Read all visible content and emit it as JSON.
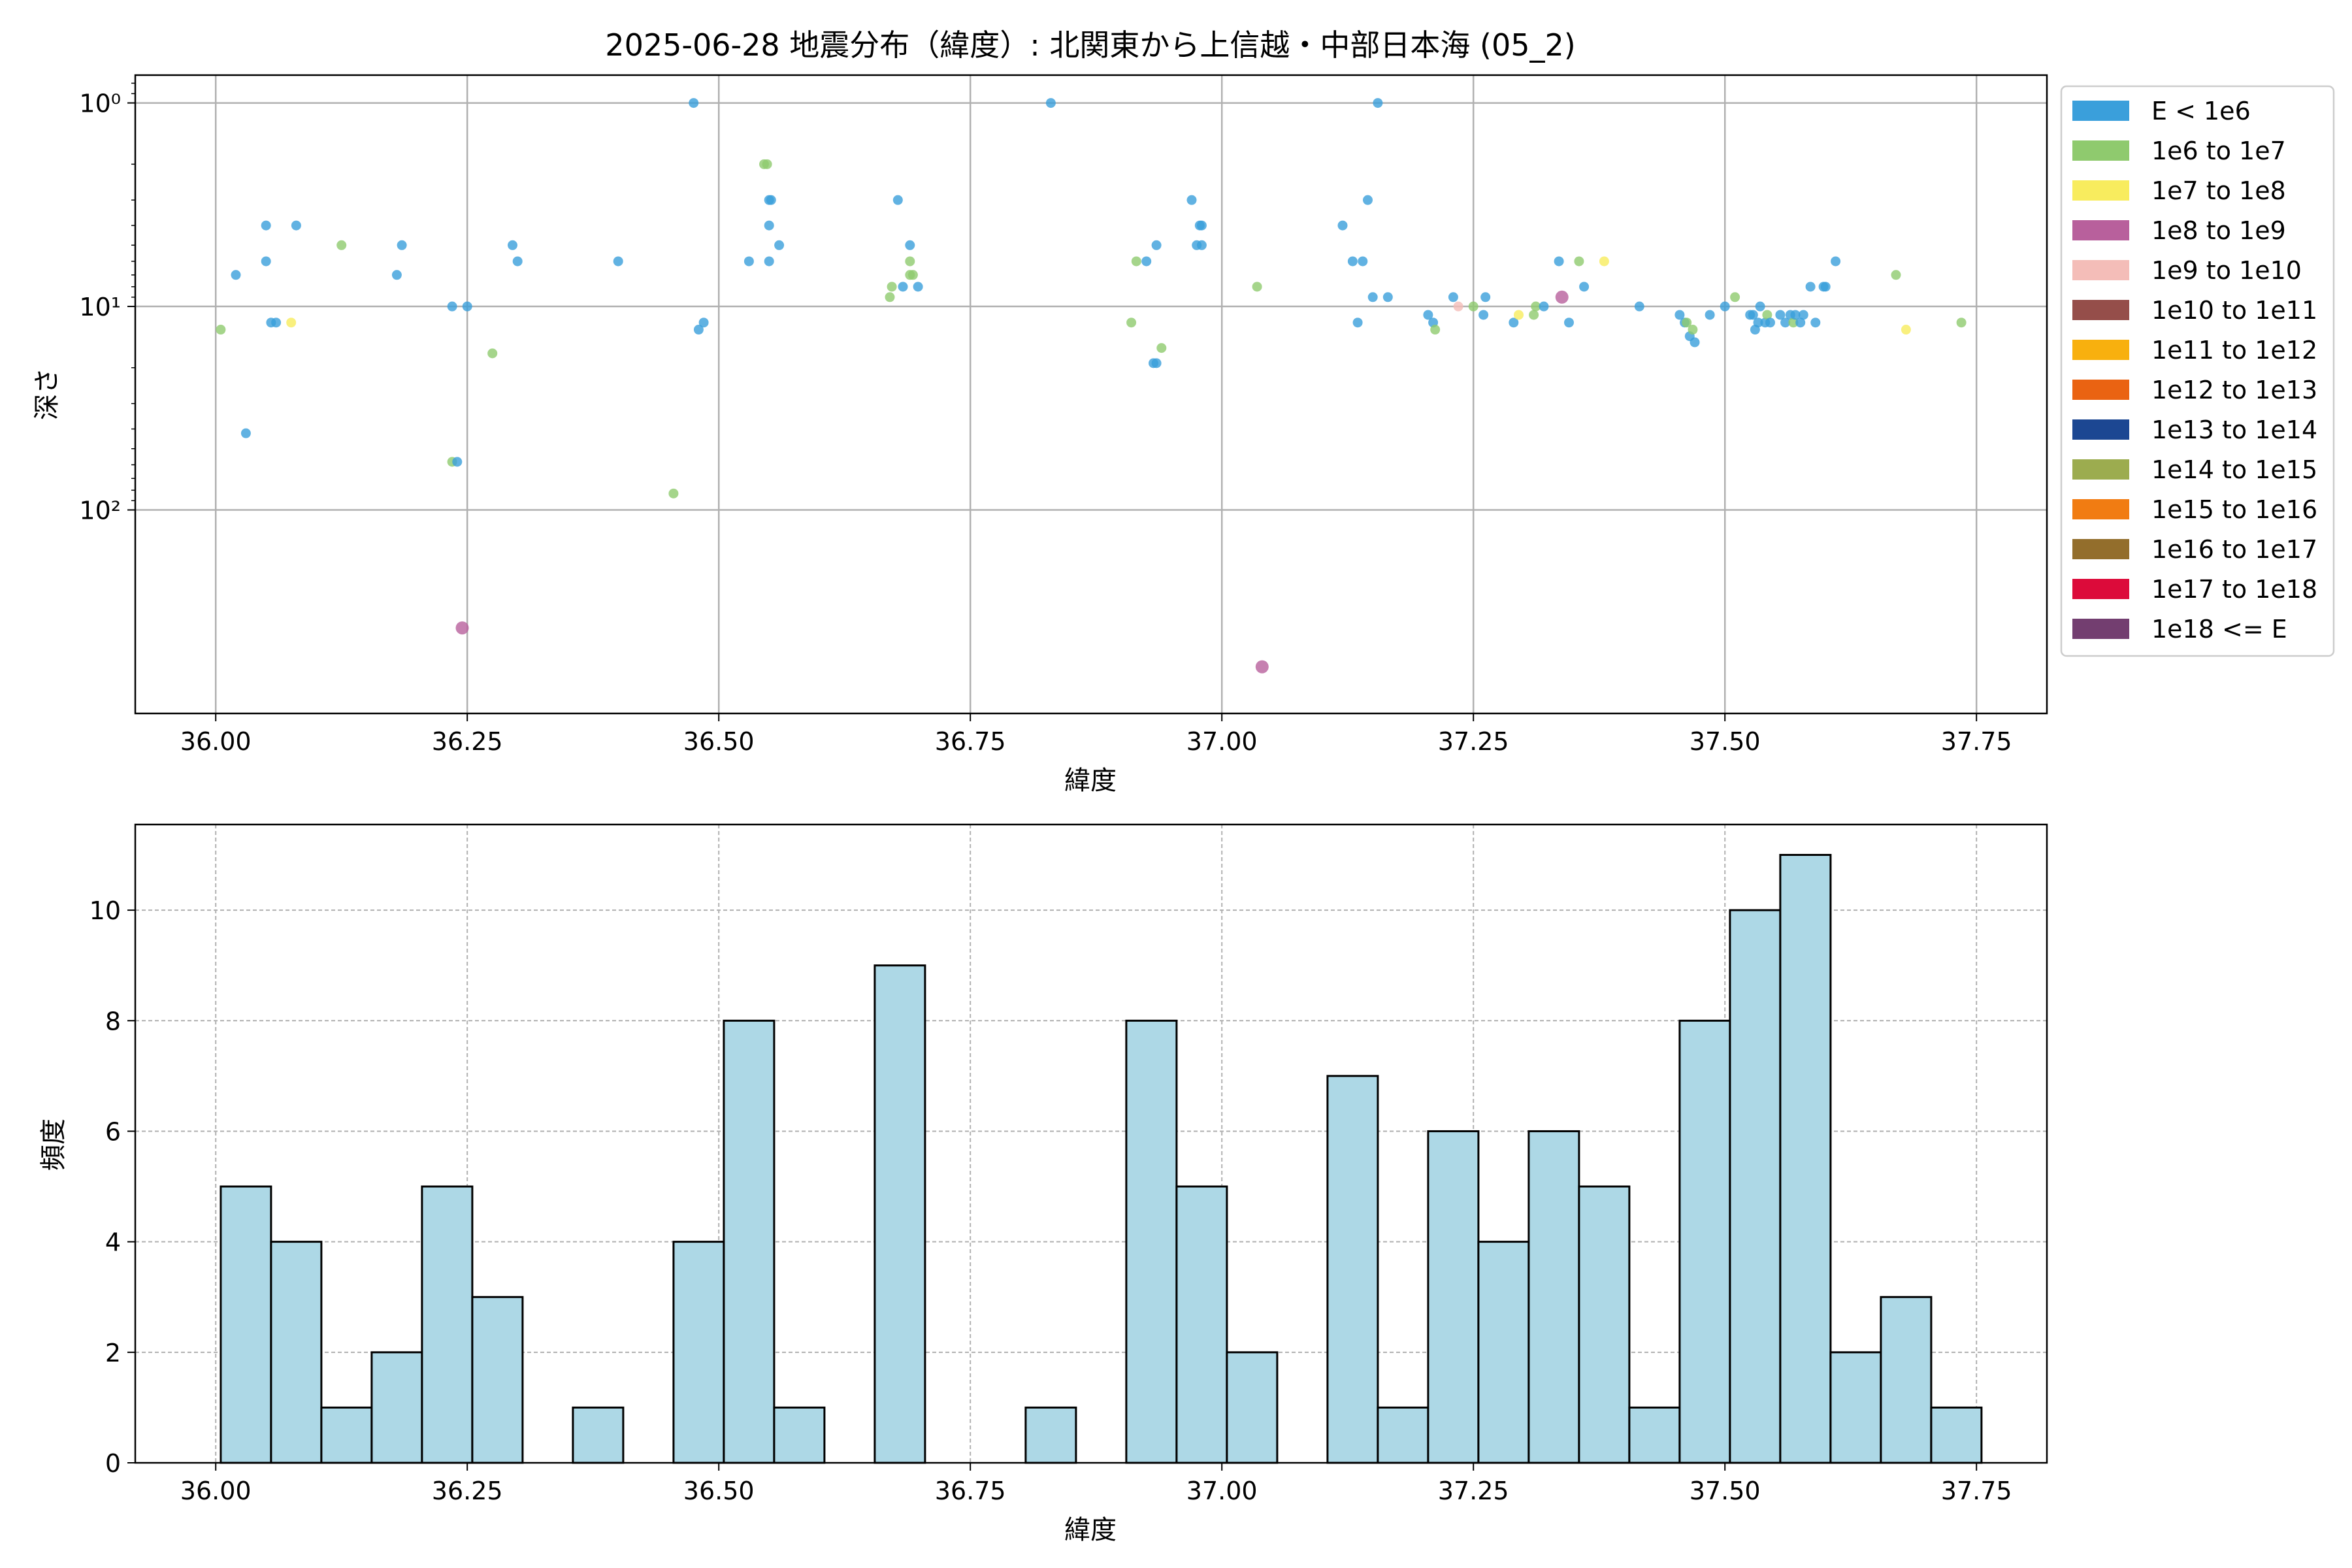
{
  "chart_data": [
    {
      "type": "scatter",
      "title": "2025-06-28 地震分布（緯度）: 北関東から上信越・中部日本海 (05_2)",
      "xlabel": "緯度",
      "ylabel": "深さ",
      "xlim": [
        35.92,
        37.82
      ],
      "ylim": [
        0.73,
        1000
      ],
      "y_scale": "log",
      "y_inverted": true,
      "grid": true,
      "legend_position": "outside-right",
      "x_ticks": [
        "36.00",
        "36.25",
        "36.50",
        "36.75",
        "37.00",
        "37.25",
        "37.50",
        "37.75"
      ],
      "x_tick_values": [
        36.0,
        36.25,
        36.5,
        36.75,
        37.0,
        37.25,
        37.5,
        37.75
      ],
      "y_ticks": [
        {
          "value": 1,
          "label": "10⁰"
        },
        {
          "value": 10,
          "label": "10¹"
        },
        {
          "value": 100,
          "label": "10²"
        }
      ],
      "legend": [
        {
          "label": "E < 1e6",
          "color": "#3a9fdb"
        },
        {
          "label": "1e6 to 1e7",
          "color": "#8fca6e"
        },
        {
          "label": "1e7 to 1e8",
          "color": "#f8ec5e"
        },
        {
          "label": "1e8 to 1e9",
          "color": "#b8609c"
        },
        {
          "label": "1e9 to 1e10",
          "color": "#f4bdb8"
        },
        {
          "label": "1e10 to 1e11",
          "color": "#954e4a"
        },
        {
          "label": "1e11 to 1e12",
          "color": "#f8b00e"
        },
        {
          "label": "1e12 to 1e13",
          "color": "#ea6312"
        },
        {
          "label": "1e13 to 1e14",
          "color": "#1c4792"
        },
        {
          "label": "1e14 to 1e15",
          "color": "#9cac4f"
        },
        {
          "label": "1e15 to 1e16",
          "color": "#f17c12"
        },
        {
          "label": "1e16 to 1e17",
          "color": "#936e2c"
        },
        {
          "label": "1e17 to 1e18",
          "color": "#dc0b3a"
        },
        {
          "label": "1e18 <= E",
          "color": "#733e70"
        }
      ],
      "points": [
        {
          "x": 36.005,
          "y": 13,
          "c": 1
        },
        {
          "x": 36.02,
          "y": 7,
          "c": 0
        },
        {
          "x": 36.03,
          "y": 42,
          "c": 0
        },
        {
          "x": 36.05,
          "y": 6,
          "c": 0
        },
        {
          "x": 36.05,
          "y": 4,
          "c": 0
        },
        {
          "x": 36.055,
          "y": 12,
          "c": 0
        },
        {
          "x": 36.06,
          "y": 12,
          "c": 0
        },
        {
          "x": 36.075,
          "y": 12,
          "c": 2
        },
        {
          "x": 36.08,
          "y": 4,
          "c": 0
        },
        {
          "x": 36.125,
          "y": 5,
          "c": 1
        },
        {
          "x": 36.18,
          "y": 7,
          "c": 0
        },
        {
          "x": 36.185,
          "y": 5,
          "c": 0
        },
        {
          "x": 36.235,
          "y": 10,
          "c": 0
        },
        {
          "x": 36.235,
          "y": 58,
          "c": 1
        },
        {
          "x": 36.24,
          "y": 58,
          "c": 0
        },
        {
          "x": 36.245,
          "y": 380,
          "c": 3
        },
        {
          "x": 36.25,
          "y": 10,
          "c": 0
        },
        {
          "x": 36.275,
          "y": 17,
          "c": 1
        },
        {
          "x": 36.295,
          "y": 5,
          "c": 0
        },
        {
          "x": 36.3,
          "y": 6,
          "c": 0
        },
        {
          "x": 36.4,
          "y": 6,
          "c": 0
        },
        {
          "x": 36.455,
          "y": 83,
          "c": 1
        },
        {
          "x": 36.475,
          "y": 1,
          "c": 0
        },
        {
          "x": 36.48,
          "y": 13,
          "c": 0
        },
        {
          "x": 36.485,
          "y": 12,
          "c": 0
        },
        {
          "x": 36.53,
          "y": 6,
          "c": 0
        },
        {
          "x": 36.545,
          "y": 2,
          "c": 1
        },
        {
          "x": 36.548,
          "y": 2,
          "c": 1
        },
        {
          "x": 36.55,
          "y": 3,
          "c": 0
        },
        {
          "x": 36.552,
          "y": 3,
          "c": 0
        },
        {
          "x": 36.55,
          "y": 4,
          "c": 0
        },
        {
          "x": 36.55,
          "y": 6,
          "c": 0
        },
        {
          "x": 36.56,
          "y": 5,
          "c": 0
        },
        {
          "x": 36.67,
          "y": 9,
          "c": 1
        },
        {
          "x": 36.672,
          "y": 8,
          "c": 1
        },
        {
          "x": 36.678,
          "y": 3,
          "c": 0
        },
        {
          "x": 36.683,
          "y": 8,
          "c": 0
        },
        {
          "x": 36.69,
          "y": 7,
          "c": 1
        },
        {
          "x": 36.69,
          "y": 6,
          "c": 1
        },
        {
          "x": 36.69,
          "y": 5,
          "c": 0
        },
        {
          "x": 36.693,
          "y": 7,
          "c": 1
        },
        {
          "x": 36.698,
          "y": 8,
          "c": 0
        },
        {
          "x": 36.83,
          "y": 1,
          "c": 0
        },
        {
          "x": 36.91,
          "y": 12,
          "c": 1
        },
        {
          "x": 36.915,
          "y": 6,
          "c": 1
        },
        {
          "x": 36.925,
          "y": 6,
          "c": 0
        },
        {
          "x": 36.932,
          "y": 19,
          "c": 0
        },
        {
          "x": 36.935,
          "y": 19,
          "c": 0
        },
        {
          "x": 36.935,
          "y": 5,
          "c": 0
        },
        {
          "x": 36.94,
          "y": 16,
          "c": 1
        },
        {
          "x": 36.97,
          "y": 3,
          "c": 0
        },
        {
          "x": 36.975,
          "y": 5,
          "c": 0
        },
        {
          "x": 36.978,
          "y": 4,
          "c": 0
        },
        {
          "x": 36.98,
          "y": 5,
          "c": 0
        },
        {
          "x": 36.98,
          "y": 4,
          "c": 0
        },
        {
          "x": 37.035,
          "y": 8,
          "c": 1
        },
        {
          "x": 37.04,
          "y": 590,
          "c": 3
        },
        {
          "x": 37.12,
          "y": 4,
          "c": 0
        },
        {
          "x": 37.13,
          "y": 6,
          "c": 0
        },
        {
          "x": 37.135,
          "y": 12,
          "c": 0
        },
        {
          "x": 37.14,
          "y": 6,
          "c": 0
        },
        {
          "x": 37.145,
          "y": 3,
          "c": 0
        },
        {
          "x": 37.15,
          "y": 9,
          "c": 0
        },
        {
          "x": 37.155,
          "y": 1,
          "c": 0
        },
        {
          "x": 37.165,
          "y": 9,
          "c": 0
        },
        {
          "x": 37.205,
          "y": 11,
          "c": 0
        },
        {
          "x": 37.21,
          "y": 12,
          "c": 0
        },
        {
          "x": 37.212,
          "y": 13,
          "c": 1
        },
        {
          "x": 37.23,
          "y": 9,
          "c": 0
        },
        {
          "x": 37.235,
          "y": 10,
          "c": 4
        },
        {
          "x": 37.25,
          "y": 10,
          "c": 1
        },
        {
          "x": 37.26,
          "y": 11,
          "c": 0
        },
        {
          "x": 37.262,
          "y": 9,
          "c": 0
        },
        {
          "x": 37.29,
          "y": 12,
          "c": 0
        },
        {
          "x": 37.295,
          "y": 11,
          "c": 2
        },
        {
          "x": 37.31,
          "y": 11,
          "c": 1
        },
        {
          "x": 37.312,
          "y": 10,
          "c": 1
        },
        {
          "x": 37.32,
          "y": 10,
          "c": 0
        },
        {
          "x": 37.335,
          "y": 6,
          "c": 0
        },
        {
          "x": 37.338,
          "y": 9,
          "c": 3
        },
        {
          "x": 37.345,
          "y": 12,
          "c": 0
        },
        {
          "x": 37.355,
          "y": 6,
          "c": 1
        },
        {
          "x": 37.36,
          "y": 8,
          "c": 0
        },
        {
          "x": 37.38,
          "y": 6,
          "c": 2
        },
        {
          "x": 37.415,
          "y": 10,
          "c": 0
        },
        {
          "x": 37.455,
          "y": 11,
          "c": 0
        },
        {
          "x": 37.46,
          "y": 12,
          "c": 0
        },
        {
          "x": 37.462,
          "y": 12,
          "c": 1
        },
        {
          "x": 37.465,
          "y": 14,
          "c": 0
        },
        {
          "x": 37.468,
          "y": 13,
          "c": 1
        },
        {
          "x": 37.47,
          "y": 15,
          "c": 0
        },
        {
          "x": 37.485,
          "y": 11,
          "c": 0
        },
        {
          "x": 37.5,
          "y": 10,
          "c": 0
        },
        {
          "x": 37.51,
          "y": 9,
          "c": 1
        },
        {
          "x": 37.525,
          "y": 11,
          "c": 0
        },
        {
          "x": 37.528,
          "y": 11,
          "c": 0
        },
        {
          "x": 37.53,
          "y": 13,
          "c": 0
        },
        {
          "x": 37.533,
          "y": 12,
          "c": 0
        },
        {
          "x": 37.535,
          "y": 10,
          "c": 0
        },
        {
          "x": 37.54,
          "y": 12,
          "c": 0
        },
        {
          "x": 37.542,
          "y": 11,
          "c": 1
        },
        {
          "x": 37.545,
          "y": 12,
          "c": 0
        },
        {
          "x": 37.555,
          "y": 11,
          "c": 0
        },
        {
          "x": 37.56,
          "y": 12,
          "c": 0
        },
        {
          "x": 37.565,
          "y": 11,
          "c": 0
        },
        {
          "x": 37.568,
          "y": 12,
          "c": 1
        },
        {
          "x": 37.57,
          "y": 11,
          "c": 0
        },
        {
          "x": 37.575,
          "y": 12,
          "c": 0
        },
        {
          "x": 37.578,
          "y": 11,
          "c": 0
        },
        {
          "x": 37.585,
          "y": 8,
          "c": 0
        },
        {
          "x": 37.59,
          "y": 12,
          "c": 0
        },
        {
          "x": 37.598,
          "y": 8,
          "c": 0
        },
        {
          "x": 37.6,
          "y": 8,
          "c": 0
        },
        {
          "x": 37.61,
          "y": 6,
          "c": 0
        },
        {
          "x": 37.67,
          "y": 7,
          "c": 1
        },
        {
          "x": 37.68,
          "y": 13,
          "c": 2
        },
        {
          "x": 37.735,
          "y": 12,
          "c": 1
        }
      ]
    },
    {
      "type": "bar",
      "xlabel": "緯度",
      "ylabel": "頻度",
      "xlim": [
        35.92,
        37.82
      ],
      "ylim": [
        0,
        11.55
      ],
      "bar_color": "#add8e6",
      "grid": "dashed",
      "x_ticks": [
        "36.00",
        "36.25",
        "36.50",
        "36.75",
        "37.00",
        "37.25",
        "37.50",
        "37.75"
      ],
      "x_tick_values": [
        36.0,
        36.25,
        36.5,
        36.75,
        37.0,
        37.25,
        37.5,
        37.75
      ],
      "y_ticks": [
        "0",
        "2",
        "4",
        "6",
        "8",
        "10"
      ],
      "y_tick_values": [
        0,
        2,
        4,
        6,
        8,
        10
      ],
      "bin_start": 36.005,
      "bin_width": 0.05,
      "values": [
        5,
        4,
        1,
        2,
        5,
        3,
        0,
        1,
        0,
        4,
        8,
        1,
        0,
        9,
        0,
        0,
        1,
        0,
        8,
        5,
        2,
        0,
        7,
        1,
        6,
        4,
        6,
        5,
        1,
        8,
        10,
        11,
        2,
        3,
        1
      ]
    }
  ]
}
